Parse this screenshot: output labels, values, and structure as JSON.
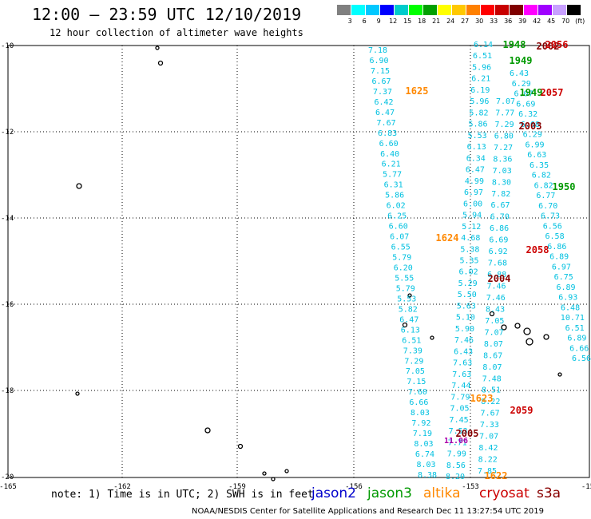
{
  "header": {
    "title": "12:00 – 23:59 UTC 12/10/2019",
    "subtitle": "12 hour collection of altimeter wave heights"
  },
  "colorbar": {
    "colors": [
      "#808080",
      "#00ffff",
      "#00c8ff",
      "#0000ff",
      "#00cccc",
      "#00ff00",
      "#00a000",
      "#ffff00",
      "#ffc800",
      "#ff8000",
      "#ff0000",
      "#c80000",
      "#800000",
      "#ff00ff",
      "#a000ff",
      "#c8a0ff",
      "#000000"
    ],
    "labels": [
      "3",
      "6",
      "9",
      "12",
      "15",
      "18",
      "21",
      "24",
      "27",
      "30",
      "33",
      "36",
      "39",
      "42",
      "45",
      "70",
      "(ft)"
    ]
  },
  "map": {
    "lon_ticks": [
      "-165",
      "-162",
      "-159",
      "-156",
      "-153",
      "-15"
    ],
    "lat_ticks": [
      "-10",
      "-12",
      "-14",
      "-16",
      "-18",
      "-20"
    ],
    "satellite_colors": {
      "jason2": "#0000cc",
      "jason3": "#009900",
      "altika": "#ff8800",
      "cryosat": "#cc0000",
      "s3a": "#880000",
      "swh": "#00c0e0"
    },
    "track_time_labels": [
      {
        "text": "1625",
        "sat": "altika"
      },
      {
        "text": "1624",
        "sat": "altika"
      },
      {
        "text": "1623",
        "sat": "altika"
      },
      {
        "text": "1622",
        "sat": "altika"
      },
      {
        "text": "1948",
        "sat": "jason3"
      },
      {
        "text": "1949",
        "sat": "jason3"
      },
      {
        "text": "1949",
        "sat": "jason3"
      },
      {
        "text": "1950",
        "sat": "jason3"
      },
      {
        "text": "2002",
        "sat": "s3a"
      },
      {
        "text": "2003",
        "sat": "s3a"
      },
      {
        "text": "2004",
        "sat": "s3a"
      },
      {
        "text": "2005",
        "sat": "s3a"
      },
      {
        "text": "2056",
        "sat": "cryosat"
      },
      {
        "text": "2057",
        "sat": "cryosat"
      },
      {
        "text": "2058",
        "sat": "cryosat"
      },
      {
        "text": "2059",
        "sat": "cryosat"
      },
      {
        "text": "11.06",
        "sat": "magenta"
      }
    ],
    "track_a_values": [
      "7.18",
      "6.90",
      "7.15",
      "6.67",
      "7.37",
      "6.42",
      "6.47",
      "7.67",
      "6.83",
      "6.60",
      "6.40",
      "6.21",
      "5.77",
      "6.31",
      "5.86",
      "6.02",
      "6.25",
      "6.60",
      "6.07",
      "6.55",
      "5.79",
      "6.20",
      "5.55",
      "5.79",
      "5.53",
      "5.82",
      "6.47",
      "6.13",
      "6.51",
      "7.39",
      "7.29",
      "7.05",
      "7.15",
      "7.60",
      "6.66",
      "8.03",
      "7.92",
      "7.19",
      "8.03",
      "6.74",
      "8.03",
      "8.38"
    ],
    "track_b_values": [
      "6.14",
      "6.51",
      "5.96",
      "6.21",
      "6.19",
      "5.96",
      "5.82",
      "5.86",
      "5.53",
      "6.13",
      "6.34",
      "6.47",
      "4.99",
      "6.97",
      "6.00",
      "5.94",
      "5.12",
      "4.68",
      "5.38",
      "5.35",
      "6.02",
      "5.29",
      "5.50",
      "5.63",
      "5.10",
      "5.90",
      "7.46",
      "6.43",
      "7.63",
      "7.63",
      "7.44",
      "7.79",
      "7.05",
      "7.45",
      "7.53",
      "7.71",
      "7.99",
      "8.56",
      "8.20"
    ],
    "track_c_values": [
      "7.07",
      "7.77",
      "7.29",
      "6.80",
      "7.27",
      "8.36",
      "7.03",
      "8.30",
      "7.82",
      "6.67",
      "6.70",
      "6.86",
      "6.69",
      "6.92",
      "7.68",
      "6.88",
      "7.46",
      "7.46",
      "8.43",
      "7.05",
      "7.07",
      "8.07",
      "8.67",
      "8.07",
      "7.48",
      "8.51",
      "8.22",
      "7.67",
      "7.33",
      "7.07",
      "8.42",
      "8.22",
      "7.85"
    ],
    "track_d_values": [
      "6.43",
      "6.29",
      "6.07",
      "6.69",
      "6.32",
      "6.68",
      "6.29",
      "6.99",
      "6.63",
      "6.35",
      "6.82",
      "6.82",
      "6.77",
      "6.70",
      "6.73",
      "6.56",
      "6.58",
      "6.86",
      "6.89",
      "6.97",
      "6.75",
      "6.89",
      "6.93",
      "6.48",
      "10.71",
      "6.51",
      "6.89",
      "6.66",
      "6.56"
    ]
  },
  "footer": {
    "note": "note: 1) Time is in UTC; 2) SWH is in feet",
    "legend": {
      "jason2": "jason2",
      "jason3": "jason3",
      "altika": "altika",
      "cryosat": "cryosat",
      "s3a": "s3a"
    },
    "credit": "NOAA/NESDIS Center for Satellite Applications and Research   Dec 11 13:27:54 UTC 2019"
  }
}
